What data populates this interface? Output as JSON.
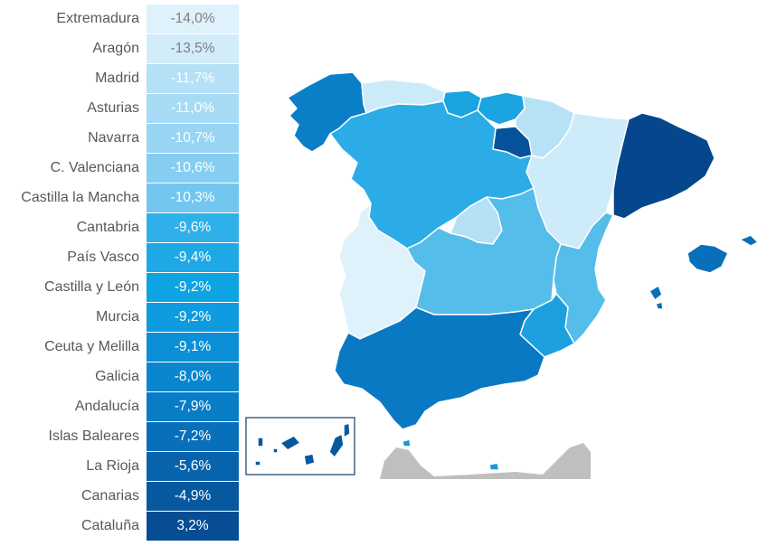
{
  "regions": [
    {
      "name": "Extremadura",
      "value": "-14,0%",
      "color": "#dff1fb",
      "text": "#7f7f7f"
    },
    {
      "name": "Aragón",
      "value": "-13,5%",
      "color": "#d2ecfa",
      "text": "#7f7f7f"
    },
    {
      "name": "Madrid",
      "value": "-11,7%",
      "color": "#b4e1f6",
      "text": "#ffffff"
    },
    {
      "name": "Asturias",
      "value": "-11,0%",
      "color": "#a6dbf5",
      "text": "#ffffff"
    },
    {
      "name": "Navarra",
      "value": "-10,7%",
      "color": "#97d5f3",
      "text": "#ffffff"
    },
    {
      "name": "C. Valenciana",
      "value": "-10,6%",
      "color": "#86cef1",
      "text": "#ffffff"
    },
    {
      "name": "Castilla la Mancha",
      "value": "-10,3%",
      "color": "#72c6ef",
      "text": "#ffffff"
    },
    {
      "name": "Cantabria",
      "value": "-9,6%",
      "color": "#2fb0e8",
      "text": "#ffffff"
    },
    {
      "name": "País Vasco",
      "value": "-9,4%",
      "color": "#1ea9e6",
      "text": "#ffffff"
    },
    {
      "name": "Castilla y León",
      "value": "-9,2%",
      "color": "#0ea3e3",
      "text": "#ffffff"
    },
    {
      "name": "Murcia",
      "value": "-9,2%",
      "color": "#0e9be0",
      "text": "#ffffff"
    },
    {
      "name": "Ceuta y Melilla",
      "value": "-9,1%",
      "color": "#0b90d8",
      "text": "#ffffff"
    },
    {
      "name": "Galicia",
      "value": "-8,0%",
      "color": "#0a86cf",
      "text": "#ffffff"
    },
    {
      "name": "Andalucía",
      "value": "-7,9%",
      "color": "#097cc6",
      "text": "#ffffff"
    },
    {
      "name": "Islas Baleares",
      "value": "-7,2%",
      "color": "#0870bb",
      "text": "#ffffff"
    },
    {
      "name": "La Rioja",
      "value": "-5,6%",
      "color": "#0863ad",
      "text": "#ffffff"
    },
    {
      "name": "Canarias",
      "value": "-4,9%",
      "color": "#07589f",
      "text": "#ffffff"
    },
    {
      "name": "Cataluña",
      "value": "3,2%",
      "color": "#074d93",
      "text": "#ffffff"
    }
  ],
  "map_colors": {
    "galicia": "#0a7fc8",
    "asturias": "#ccebf9",
    "cantabria": "#1aa5e2",
    "pais_vasco": "#1aa5e2",
    "navarra": "#b7e2f6",
    "rioja": "#06529b",
    "aragon": "#cdebf9",
    "cataluna": "#05468c",
    "castilla_leon": "#2cace6",
    "madrid": "#b5e0f5",
    "castilla_mancha": "#55bde9",
    "extremadura": "#dff1fb",
    "valencia": "#55bde9",
    "murcia": "#1ca0e0",
    "andalucia": "#0a79c3",
    "baleares": "#0870bb",
    "canarias": "#07589f",
    "ceuta_melilla": "#1a9ad8",
    "foreign": "#bfbfbf",
    "border": "#ffffff",
    "inset_frame": "#1f4e79"
  }
}
